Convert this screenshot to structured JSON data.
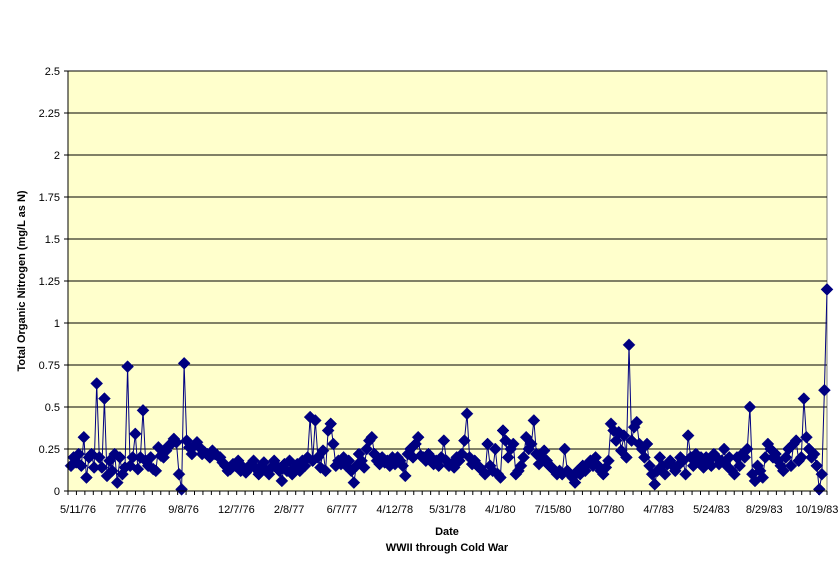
{
  "chart_data": {
    "type": "line",
    "title": "",
    "xlabel": "Date",
    "xlabel_sub": "WWII through Cold War",
    "ylabel": "Total Organic Nitrogen (mg/L as N)",
    "ylim": [
      0,
      2.5
    ],
    "yticks": [
      "0",
      "0.25",
      "0.5",
      "0.75",
      "1",
      "1.25",
      "1.5",
      "1.75",
      "2",
      "2.25",
      "2.5"
    ],
    "xtick_labels": [
      "5/11/76",
      "7/7/76",
      "9/8/76",
      "12/7/76",
      "2/8/77",
      "6/7/77",
      "4/12/78",
      "5/31/78",
      "4/1/80",
      "7/15/80",
      "10/7/80",
      "4/7/83",
      "5/24/83",
      "8/29/83",
      "10/19/83"
    ],
    "grid": true,
    "legend": "none",
    "colors": {
      "plot_bg": "#ffffcc",
      "series": "#000080",
      "grid": "#000000"
    },
    "series": [
      {
        "values": [
          0.15,
          0.2,
          0.17,
          0.22,
          0.15,
          0.32,
          0.08,
          0.2,
          0.22,
          0.14,
          0.64,
          0.2,
          0.14,
          0.55,
          0.09,
          0.18,
          0.12,
          0.22,
          0.05,
          0.2,
          0.1,
          0.14,
          0.74,
          0.15,
          0.2,
          0.34,
          0.13,
          0.2,
          0.48,
          0.18,
          0.15,
          0.2,
          0.13,
          0.12,
          0.26,
          0.21,
          0.2,
          0.24,
          0.27,
          0.28,
          0.31,
          0.29,
          0.1,
          0.01,
          0.76,
          0.3,
          0.26,
          0.22,
          0.27,
          0.29,
          0.26,
          0.22,
          0.23,
          0.22,
          0.2,
          0.24,
          0.22,
          0.21,
          0.2,
          0.17,
          0.15,
          0.12,
          0.13,
          0.16,
          0.15,
          0.18,
          0.12,
          0.14,
          0.11,
          0.13,
          0.16,
          0.18,
          0.13,
          0.1,
          0.15,
          0.17,
          0.12,
          0.1,
          0.14,
          0.18,
          0.15,
          0.12,
          0.06,
          0.16,
          0.12,
          0.18,
          0.1,
          0.14,
          0.16,
          0.12,
          0.18,
          0.15,
          0.2,
          0.44,
          0.18,
          0.42,
          0.2,
          0.14,
          0.24,
          0.12,
          0.36,
          0.4,
          0.28,
          0.15,
          0.18,
          0.16,
          0.2,
          0.15,
          0.18,
          0.12,
          0.05,
          0.15,
          0.22,
          0.18,
          0.14,
          0.25,
          0.3,
          0.32,
          0.22,
          0.18,
          0.16,
          0.2,
          0.17,
          0.18,
          0.15,
          0.2,
          0.16,
          0.2,
          0.18,
          0.15,
          0.09,
          0.22,
          0.25,
          0.2,
          0.28,
          0.32,
          0.21,
          0.2,
          0.18,
          0.22,
          0.2,
          0.16,
          0.18,
          0.15,
          0.2,
          0.3,
          0.18,
          0.15,
          0.16,
          0.14,
          0.2,
          0.18,
          0.22,
          0.3,
          0.46,
          0.2,
          0.16,
          0.18,
          0.15,
          0.14,
          0.12,
          0.1,
          0.28,
          0.15,
          0.12,
          0.25,
          0.1,
          0.08,
          0.36,
          0.3,
          0.2,
          0.25,
          0.28,
          0.1,
          0.12,
          0.15,
          0.2,
          0.32,
          0.25,
          0.28,
          0.42,
          0.22,
          0.16,
          0.2,
          0.24,
          0.18,
          0.15,
          0.14,
          0.12,
          0.1,
          0.12,
          0.1,
          0.25,
          0.12,
          0.1,
          0.08,
          0.05,
          0.12,
          0.1,
          0.15,
          0.12,
          0.16,
          0.18,
          0.15,
          0.2,
          0.15,
          0.12,
          0.1,
          0.14,
          0.18,
          0.4,
          0.36,
          0.3,
          0.35,
          0.24,
          0.33,
          0.2,
          0.87,
          0.3,
          0.38,
          0.41,
          0.28,
          0.25,
          0.2,
          0.28,
          0.15,
          0.1,
          0.04,
          0.12,
          0.2,
          0.15,
          0.1,
          0.16,
          0.18,
          0.15,
          0.12,
          0.15,
          0.2,
          0.18,
          0.1,
          0.33,
          0.2,
          0.15,
          0.22,
          0.18,
          0.2,
          0.14,
          0.2,
          0.18,
          0.15,
          0.22,
          0.2,
          0.16,
          0.18,
          0.25,
          0.15,
          0.2,
          0.12,
          0.1,
          0.2,
          0.15,
          0.22,
          0.2,
          0.25,
          0.5,
          0.1,
          0.06,
          0.15,
          0.12,
          0.08,
          0.2,
          0.28,
          0.25,
          0.2,
          0.22,
          0.18,
          0.15,
          0.12,
          0.2,
          0.25,
          0.15,
          0.28,
          0.3,
          0.18,
          0.2,
          0.55,
          0.32,
          0.25,
          0.2,
          0.22,
          0.15,
          0.01,
          0.1,
          0.6,
          1.2
        ]
      }
    ]
  }
}
